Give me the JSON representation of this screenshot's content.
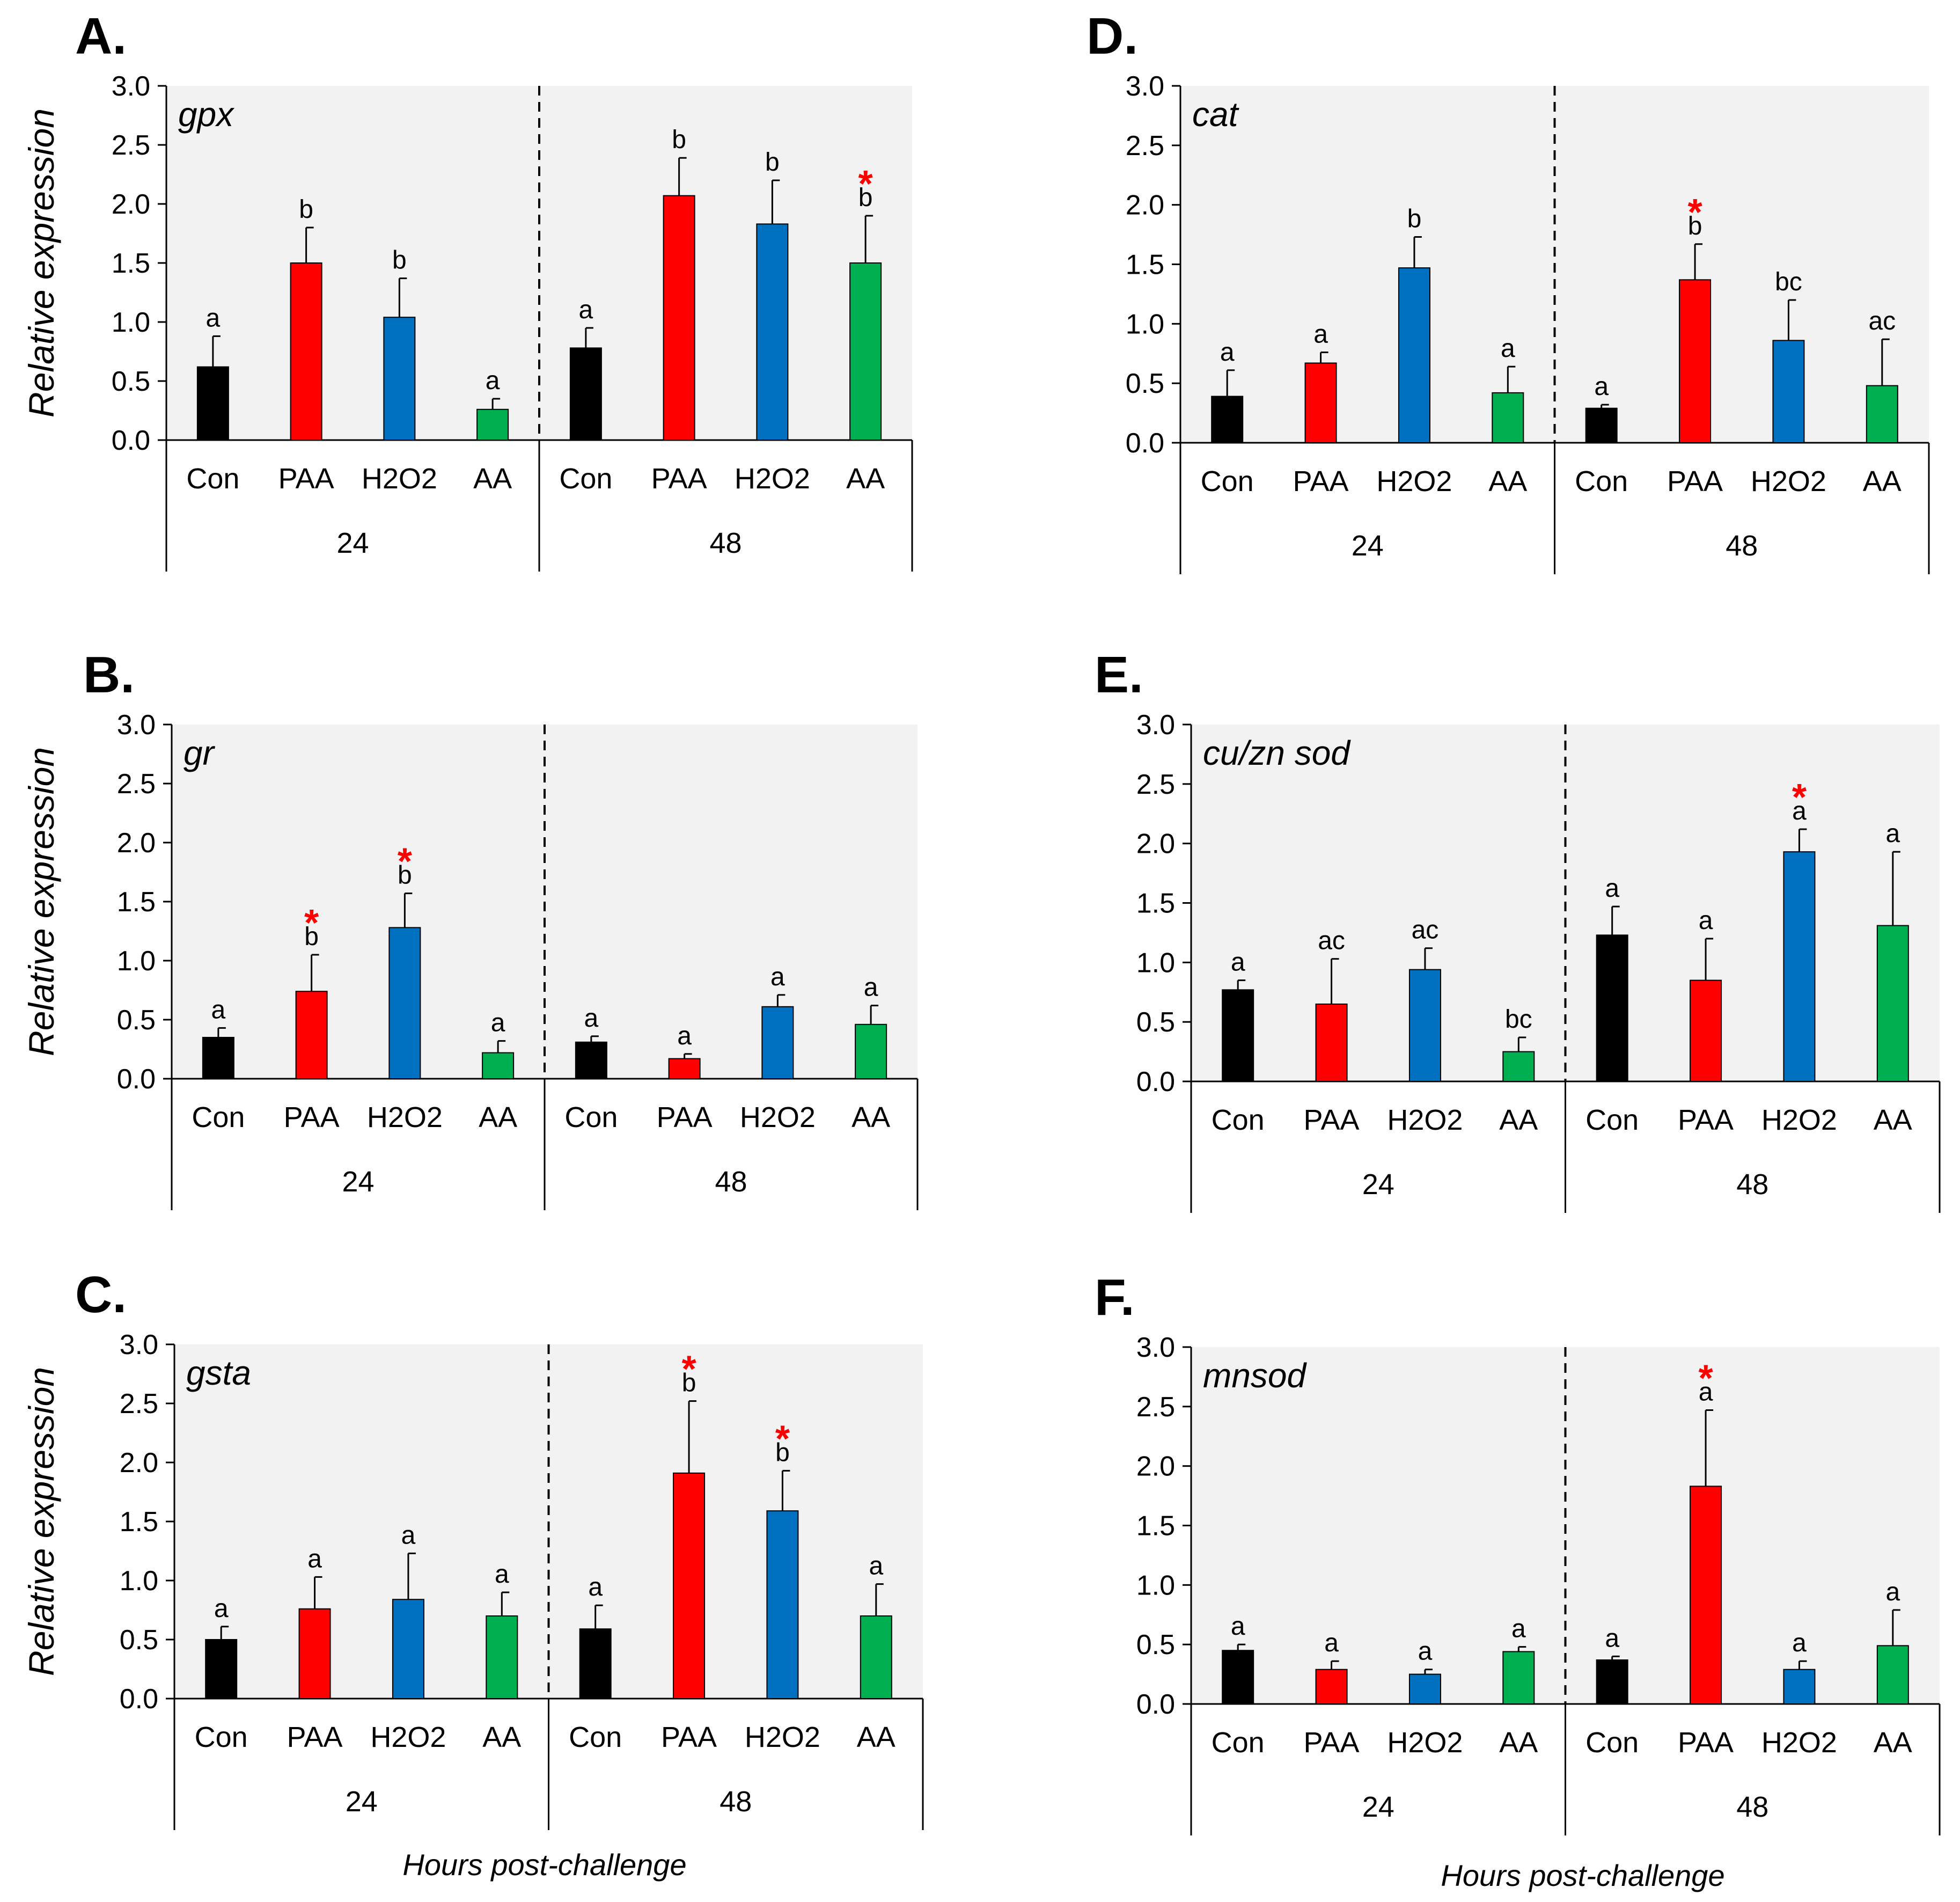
{
  "figure": {
    "ylabel": "Relative expression",
    "xlabel": "Hours post-challenge"
  },
  "chart_data": [
    {
      "type": "bar",
      "panel": "A.",
      "gene": "gpx",
      "ylabel": "Relative expression",
      "ylim": [
        0,
        3.0
      ],
      "yticks": [
        "0.0",
        "0.5",
        "1.0",
        "1.5",
        "2.0",
        "2.5",
        "3.0"
      ],
      "groups": [
        {
          "time": "24",
          "categories": [
            "Con",
            "PAA",
            "H2O2",
            "AA"
          ],
          "values": [
            0.62,
            1.5,
            1.04,
            0.26
          ],
          "errors": [
            0.26,
            0.3,
            0.33,
            0.09
          ],
          "letters": [
            "a",
            "b",
            "b",
            "a"
          ],
          "stars": [
            "",
            "",
            "",
            ""
          ]
        },
        {
          "time": "48",
          "categories": [
            "Con",
            "PAA",
            "H2O2",
            "AA"
          ],
          "values": [
            0.78,
            2.07,
            1.83,
            1.5
          ],
          "errors": [
            0.17,
            0.32,
            0.37,
            0.4
          ],
          "letters": [
            "a",
            "b",
            "b",
            "b"
          ],
          "stars": [
            "",
            "",
            "",
            "*"
          ]
        }
      ]
    },
    {
      "type": "bar",
      "panel": "B.",
      "gene": "gr",
      "ylabel": "Relative expression",
      "ylim": [
        0,
        3.0
      ],
      "yticks": [
        "0.0",
        "0.5",
        "1.0",
        "1.5",
        "2.0",
        "2.5",
        "3.0"
      ],
      "groups": [
        {
          "time": "24",
          "categories": [
            "Con",
            "PAA",
            "H2O2",
            "AA"
          ],
          "values": [
            0.35,
            0.74,
            1.28,
            0.22
          ],
          "errors": [
            0.08,
            0.31,
            0.29,
            0.1
          ],
          "letters": [
            "a",
            "b",
            "b",
            "a"
          ],
          "stars": [
            "",
            "*",
            "*",
            ""
          ]
        },
        {
          "time": "48",
          "categories": [
            "Con",
            "PAA",
            "H2O2",
            "AA"
          ],
          "values": [
            0.31,
            0.17,
            0.61,
            0.46
          ],
          "errors": [
            0.05,
            0.04,
            0.1,
            0.16
          ],
          "letters": [
            "a",
            "a",
            "a",
            "a"
          ],
          "stars": [
            "",
            "",
            "",
            ""
          ]
        }
      ]
    },
    {
      "type": "bar",
      "panel": "C.",
      "gene": "gsta",
      "ylabel": "Relative expression",
      "ylim": [
        0,
        3.0
      ],
      "yticks": [
        "0.0",
        "0.5",
        "1.0",
        "1.5",
        "2.0",
        "2.5",
        "3.0"
      ],
      "groups": [
        {
          "time": "24",
          "categories": [
            "Con",
            "PAA",
            "H2O2",
            "AA"
          ],
          "values": [
            0.5,
            0.76,
            0.84,
            0.7
          ],
          "errors": [
            0.11,
            0.27,
            0.39,
            0.2
          ],
          "letters": [
            "a",
            "a",
            "a",
            "a"
          ],
          "stars": [
            "",
            "",
            "",
            ""
          ]
        },
        {
          "time": "48",
          "categories": [
            "Con",
            "PAA",
            "H2O2",
            "AA"
          ],
          "values": [
            0.59,
            1.91,
            1.59,
            0.7
          ],
          "errors": [
            0.2,
            0.61,
            0.34,
            0.27
          ],
          "letters": [
            "a",
            "b",
            "b",
            "a"
          ],
          "stars": [
            "",
            "*",
            "*",
            ""
          ]
        }
      ]
    },
    {
      "type": "bar",
      "panel": "D.",
      "gene": "cat",
      "ylabel": "Relative expression",
      "ylim": [
        0,
        3.0
      ],
      "yticks": [
        "0.0",
        "0.5",
        "1.0",
        "1.5",
        "2.0",
        "2.5",
        "3.0"
      ],
      "groups": [
        {
          "time": "24",
          "categories": [
            "Con",
            "PAA",
            "H2O2",
            "AA"
          ],
          "values": [
            0.39,
            0.67,
            1.47,
            0.42
          ],
          "errors": [
            0.22,
            0.09,
            0.26,
            0.22
          ],
          "letters": [
            "a",
            "a",
            "b",
            "a"
          ],
          "stars": [
            "",
            "",
            "",
            ""
          ]
        },
        {
          "time": "48",
          "categories": [
            "Con",
            "PAA",
            "H2O2",
            "AA"
          ],
          "values": [
            0.29,
            1.37,
            0.86,
            0.48
          ],
          "errors": [
            0.03,
            0.3,
            0.34,
            0.39
          ],
          "letters": [
            "a",
            "b",
            "bc",
            "ac"
          ],
          "stars": [
            "",
            "*",
            "",
            ""
          ]
        }
      ]
    },
    {
      "type": "bar",
      "panel": "E.",
      "gene": "cu/zn sod",
      "ylabel": "Relative expression",
      "ylim": [
        0,
        3.0
      ],
      "yticks": [
        "0.0",
        "0.5",
        "1.0",
        "1.5",
        "2.0",
        "2.5",
        "3.0"
      ],
      "groups": [
        {
          "time": "24",
          "categories": [
            "Con",
            "PAA",
            "H2O2",
            "AA"
          ],
          "values": [
            0.77,
            0.65,
            0.94,
            0.25
          ],
          "errors": [
            0.08,
            0.38,
            0.18,
            0.12
          ],
          "letters": [
            "a",
            "ac",
            "ac",
            "bc"
          ],
          "stars": [
            "",
            "",
            "",
            ""
          ]
        },
        {
          "time": "48",
          "categories": [
            "Con",
            "PAA",
            "H2O2",
            "AA"
          ],
          "values": [
            1.23,
            0.85,
            1.93,
            1.31
          ],
          "errors": [
            0.24,
            0.35,
            0.19,
            0.62
          ],
          "letters": [
            "a",
            "a",
            "a",
            "a"
          ],
          "stars": [
            "",
            "",
            "*",
            ""
          ]
        }
      ]
    },
    {
      "type": "bar",
      "panel": "F.",
      "gene": "mnsod",
      "ylabel": "Relative expression",
      "ylim": [
        0,
        3.0
      ],
      "yticks": [
        "0.0",
        "0.5",
        "1.0",
        "1.5",
        "2.0",
        "2.5",
        "3.0"
      ],
      "groups": [
        {
          "time": "24",
          "categories": [
            "Con",
            "PAA",
            "H2O2",
            "AA"
          ],
          "values": [
            0.45,
            0.29,
            0.25,
            0.44
          ],
          "errors": [
            0.05,
            0.07,
            0.04,
            0.04
          ],
          "letters": [
            "a",
            "a",
            "a",
            "a"
          ],
          "stars": [
            "",
            "",
            "",
            ""
          ]
        },
        {
          "time": "48",
          "categories": [
            "Con",
            "PAA",
            "H2O2",
            "AA"
          ],
          "values": [
            0.37,
            1.83,
            0.29,
            0.49
          ],
          "errors": [
            0.03,
            0.64,
            0.07,
            0.3
          ],
          "letters": [
            "a",
            "a",
            "a",
            "a"
          ],
          "stars": [
            "",
            "*",
            "",
            ""
          ]
        }
      ]
    }
  ],
  "colors": {
    "Con": "#000000",
    "PAA": "#ff0000",
    "H2O2": "#0070c0",
    "AA": "#00b050",
    "plot_background": "#f2f2f2",
    "star": "#ff0000"
  }
}
